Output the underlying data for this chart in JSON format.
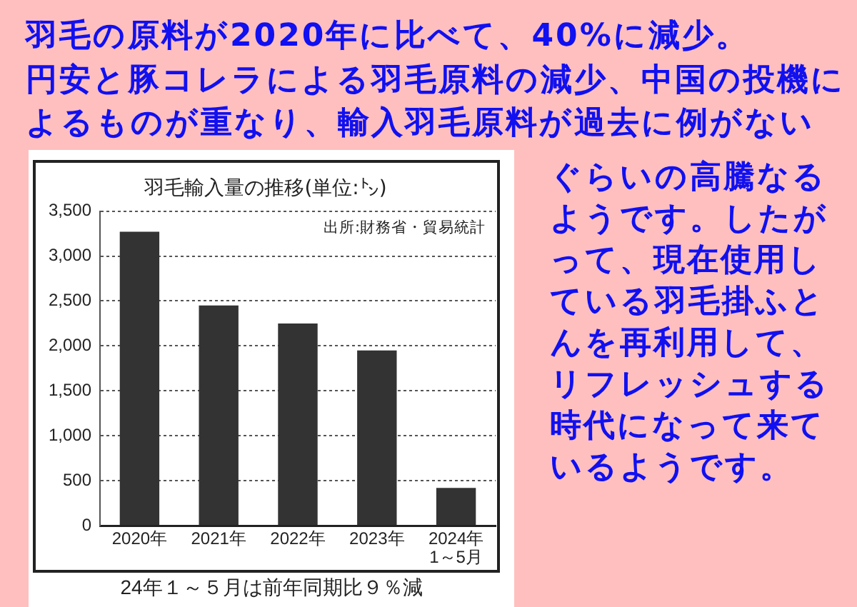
{
  "chart_data": {
    "type": "bar",
    "title": "羽毛輸入量の推移(単位:㌧)",
    "categories": [
      "2020年",
      "2021年",
      "2022年",
      "2023年",
      "2024年\n1～5月"
    ],
    "values": [
      3270,
      2450,
      2250,
      1950,
      420
    ],
    "color": "#333333",
    "ylim": [
      0,
      3500
    ],
    "yticks": [
      {
        "value": 0,
        "label": "0"
      },
      {
        "value": 500,
        "label": "500"
      },
      {
        "value": 1000,
        "label": "1,000"
      },
      {
        "value": 1500,
        "label": "1,500"
      },
      {
        "value": 2000,
        "label": "2,000"
      },
      {
        "value": 2500,
        "label": "2,500"
      },
      {
        "value": 3000,
        "label": "3,000"
      },
      {
        "value": 3500,
        "label": "3,500"
      }
    ],
    "grid": "y",
    "annotations": [
      "羽毛の原料が2020年に比べて、40%に減少。",
      "円安と豚コレラによる羽毛原料の減少、中国の投機によるものが重なり、輸入羽毛原料が過去に例がない",
      "ぐらいの高騰なるようです。したがって、現在使用している羽毛掛ふとんを再利用して、リフレッシュする時代になって来ているようです。",
      "出所:財務省・貿易統計",
      "24年１～５月は前年同期比９％減"
    ]
  }
}
